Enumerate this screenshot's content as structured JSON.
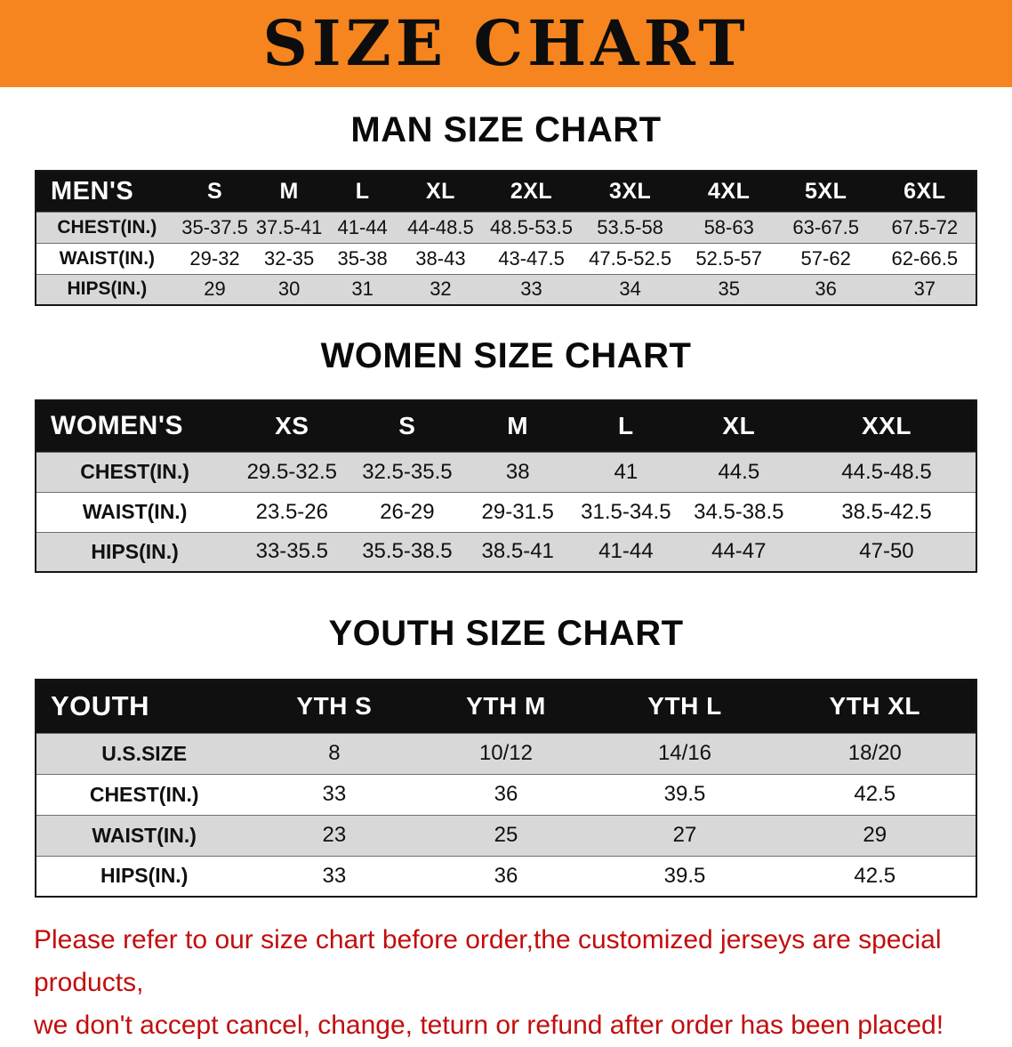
{
  "banner": {
    "title": "SIZE CHART"
  },
  "colors": {
    "banner_bg": "#f6851f",
    "table_header_bg": "#101010",
    "row_shaded_bg": "#d8d8d8",
    "note_text": "#c20d0d"
  },
  "men": {
    "heading": "MAN SIZE CHART",
    "header": [
      "MEN'S",
      "S",
      "M",
      "L",
      "XL",
      "2XL",
      "3XL",
      "4XL",
      "5XL",
      "6XL"
    ],
    "rows": [
      [
        "CHEST(IN.)",
        "35-37.5",
        "37.5-41",
        "41-44",
        "44-48.5",
        "48.5-53.5",
        "53.5-58",
        "58-63",
        "63-67.5",
        "67.5-72"
      ],
      [
        "WAIST(IN.)",
        "29-32",
        "32-35",
        "35-38",
        "38-43",
        "43-47.5",
        "47.5-52.5",
        "52.5-57",
        "57-62",
        "62-66.5"
      ],
      [
        "HIPS(IN.)",
        "29",
        "30",
        "31",
        "32",
        "33",
        "34",
        "35",
        "36",
        "37"
      ]
    ]
  },
  "women": {
    "heading": "WOMEN SIZE CHART",
    "header": [
      "WOMEN'S",
      "XS",
      "S",
      "M",
      "L",
      "XL",
      "XXL"
    ],
    "rows": [
      [
        "CHEST(IN.)",
        "29.5-32.5",
        "32.5-35.5",
        "38",
        "41",
        "44.5",
        "44.5-48.5"
      ],
      [
        "WAIST(IN.)",
        "23.5-26",
        "26-29",
        "29-31.5",
        "31.5-34.5",
        "34.5-38.5",
        "38.5-42.5"
      ],
      [
        "HIPS(IN.)",
        "33-35.5",
        "35.5-38.5",
        "38.5-41",
        "41-44",
        "44-47",
        "47-50"
      ]
    ]
  },
  "youth": {
    "heading": "YOUTH SIZE CHART",
    "header": [
      "YOUTH",
      "YTH S",
      "YTH M",
      "YTH L",
      "YTH XL"
    ],
    "rows": [
      [
        "U.S.SIZE",
        "8",
        "10/12",
        "14/16",
        "18/20"
      ],
      [
        "CHEST(IN.)",
        "33",
        "36",
        "39.5",
        "42.5"
      ],
      [
        "WAIST(IN.)",
        "23",
        "25",
        "27",
        "29"
      ],
      [
        "HIPS(IN.)",
        "33",
        "36",
        "39.5",
        "42.5"
      ]
    ]
  },
  "note": {
    "line1": "Please refer to our size chart before order,the customized jerseys are special products,",
    "line2": "we don't accept cancel, change, teturn or refund after order has been placed!"
  }
}
